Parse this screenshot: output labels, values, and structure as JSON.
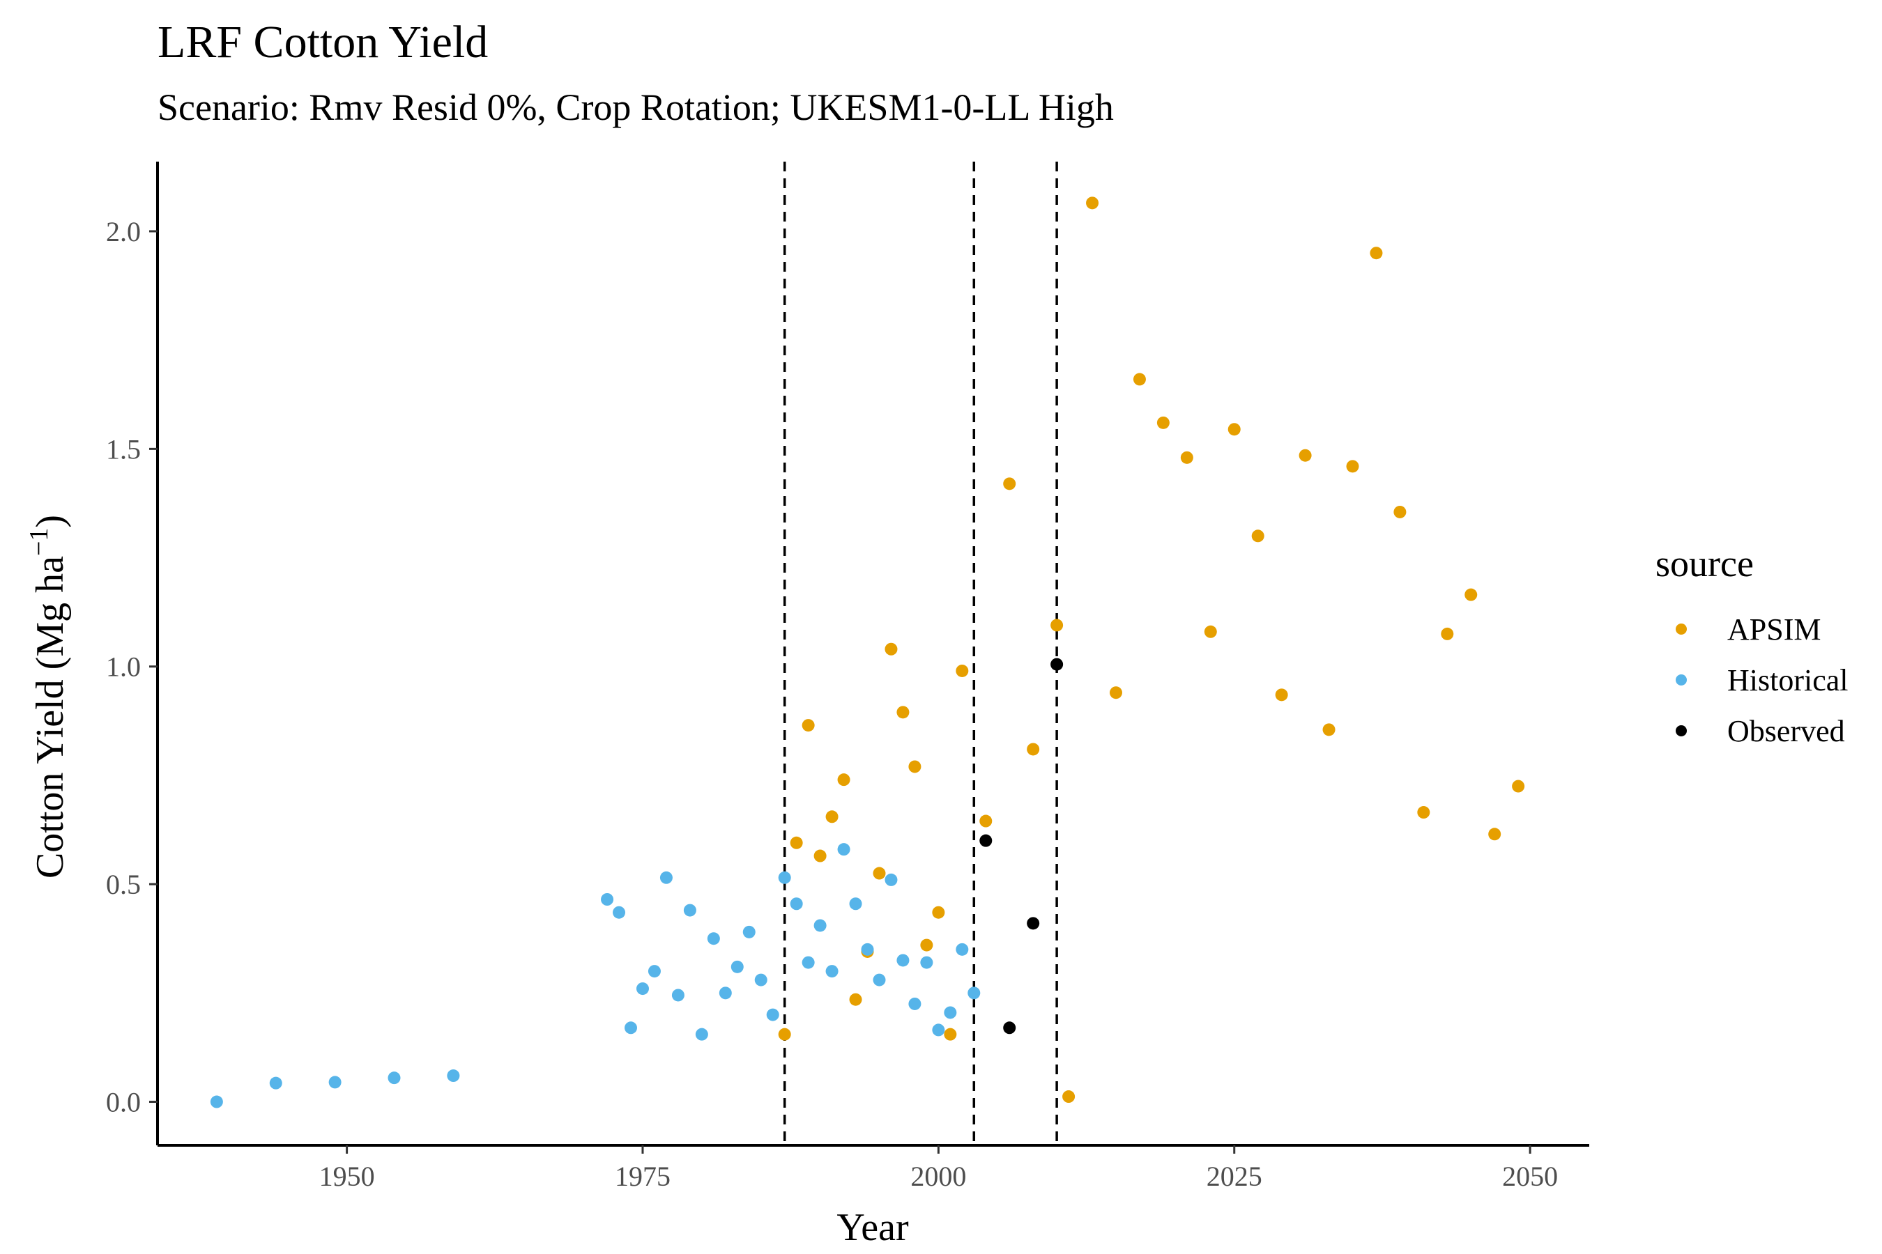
{
  "chart_data": {
    "type": "scatter",
    "title": "LRF Cotton Yield",
    "subtitle": "Scenario: Rmv Resid 0%, Crop Rotation; UKESM1-0-LL High",
    "xlabel": "Year",
    "ylabel_main": "Cotton Yield (Mg ha",
    "ylabel_sup": "−1",
    "ylabel_close": ")",
    "xlim": [
      1934,
      2055
    ],
    "ylim": [
      -0.1,
      2.16
    ],
    "x_ticks": [
      1950,
      1975,
      2000,
      2025,
      2050
    ],
    "y_ticks": [
      0.0,
      0.5,
      1.0,
      1.5,
      2.0
    ],
    "x_tick_labels": [
      "1950",
      "1975",
      "2000",
      "2025",
      "2050"
    ],
    "y_tick_labels": [
      "0.0",
      "0.5",
      "1.0",
      "1.5",
      "2.0"
    ],
    "vlines": [
      1987,
      2003,
      2010
    ],
    "grid": false,
    "legend": {
      "title": "source",
      "position": "right",
      "entries": [
        "APSIM",
        "Historical",
        "Observed"
      ]
    },
    "series": [
      {
        "name": "APSIM",
        "color": "#E69F00",
        "points": [
          [
            1987,
            0.155
          ],
          [
            1988,
            0.595
          ],
          [
            1989,
            0.865
          ],
          [
            1990,
            0.565
          ],
          [
            1991,
            0.655
          ],
          [
            1992,
            0.74
          ],
          [
            1993,
            0.235
          ],
          [
            1994,
            0.345
          ],
          [
            1995,
            0.525
          ],
          [
            1996,
            1.04
          ],
          [
            1997,
            0.895
          ],
          [
            1998,
            0.77
          ],
          [
            1999,
            0.36
          ],
          [
            2000,
            0.435
          ],
          [
            2001,
            0.155
          ],
          [
            2002,
            0.99
          ],
          [
            2004,
            0.645
          ],
          [
            2006,
            1.42
          ],
          [
            2008,
            0.81
          ],
          [
            2010,
            1.095
          ],
          [
            2011,
            0.012
          ],
          [
            2013,
            2.065
          ],
          [
            2015,
            0.94
          ],
          [
            2017,
            1.66
          ],
          [
            2019,
            1.56
          ],
          [
            2021,
            1.48
          ],
          [
            2023,
            1.08
          ],
          [
            2025,
            1.545
          ],
          [
            2027,
            1.3
          ],
          [
            2029,
            0.935
          ],
          [
            2031,
            1.485
          ],
          [
            2033,
            0.855
          ],
          [
            2035,
            1.46
          ],
          [
            2037,
            1.95
          ],
          [
            2039,
            1.355
          ],
          [
            2041,
            0.665
          ],
          [
            2043,
            1.075
          ],
          [
            2045,
            1.165
          ],
          [
            2047,
            0.615
          ],
          [
            2049,
            0.725
          ]
        ]
      },
      {
        "name": "Historical",
        "color": "#56B4E9",
        "points": [
          [
            1939,
            0.0
          ],
          [
            1944,
            0.043
          ],
          [
            1949,
            0.045
          ],
          [
            1954,
            0.055
          ],
          [
            1959,
            0.06
          ],
          [
            1972,
            0.465
          ],
          [
            1973,
            0.435
          ],
          [
            1974,
            0.17
          ],
          [
            1975,
            0.26
          ],
          [
            1976,
            0.3
          ],
          [
            1977,
            0.515
          ],
          [
            1978,
            0.245
          ],
          [
            1979,
            0.44
          ],
          [
            1980,
            0.155
          ],
          [
            1981,
            0.375
          ],
          [
            1982,
            0.25
          ],
          [
            1983,
            0.31
          ],
          [
            1984,
            0.39
          ],
          [
            1985,
            0.28
          ],
          [
            1986,
            0.2
          ],
          [
            1987,
            0.515
          ],
          [
            1988,
            0.455
          ],
          [
            1989,
            0.32
          ],
          [
            1990,
            0.405
          ],
          [
            1991,
            0.3
          ],
          [
            1992,
            0.58
          ],
          [
            1993,
            0.455
          ],
          [
            1994,
            0.35
          ],
          [
            1995,
            0.28
          ],
          [
            1996,
            0.51
          ],
          [
            1997,
            0.325
          ],
          [
            1998,
            0.225
          ],
          [
            1999,
            0.32
          ],
          [
            2000,
            0.165
          ],
          [
            2001,
            0.205
          ],
          [
            2002,
            0.35
          ],
          [
            2003,
            0.25
          ]
        ]
      },
      {
        "name": "Observed",
        "color": "#000000",
        "points": [
          [
            2004,
            0.6
          ],
          [
            2006,
            0.17
          ],
          [
            2008,
            0.41
          ],
          [
            2010,
            1.005
          ]
        ]
      }
    ]
  }
}
